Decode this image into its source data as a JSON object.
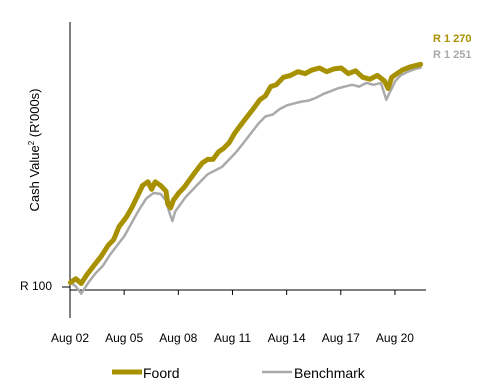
{
  "chart_data": {
    "type": "line",
    "ylabel_main": "Cash Value",
    "ylabel_sup": "2",
    "ylabel_unit": " (R'000s)",
    "y_start_label": "R 100",
    "x_ticks": [
      "Aug 02",
      "Aug 05",
      "Aug 08",
      "Aug 11",
      "Aug 14",
      "Aug 17",
      "Aug 20"
    ],
    "xlim": [
      2002.58,
      2022.3
    ],
    "ylim": [
      60,
      1400
    ],
    "legend_position": "bottom",
    "series": [
      {
        "name": "Foord",
        "color": "#a89100",
        "end_label": "R 1 270",
        "points": [
          [
            2002.6,
            100
          ],
          [
            2002.9,
            120
          ],
          [
            2003.2,
            95
          ],
          [
            2003.5,
            140
          ],
          [
            2003.9,
            190
          ],
          [
            2004.3,
            240
          ],
          [
            2004.7,
            300
          ],
          [
            2005.0,
            330
          ],
          [
            2005.3,
            400
          ],
          [
            2005.7,
            450
          ],
          [
            2006.0,
            500
          ],
          [
            2006.3,
            560
          ],
          [
            2006.6,
            620
          ],
          [
            2006.9,
            640
          ],
          [
            2007.1,
            600
          ],
          [
            2007.3,
            640
          ],
          [
            2007.6,
            620
          ],
          [
            2007.9,
            590
          ],
          [
            2008.0,
            520
          ],
          [
            2008.15,
            500
          ],
          [
            2008.3,
            540
          ],
          [
            2008.6,
            580
          ],
          [
            2008.9,
            610
          ],
          [
            2009.2,
            650
          ],
          [
            2009.5,
            690
          ],
          [
            2009.9,
            740
          ],
          [
            2010.2,
            760
          ],
          [
            2010.5,
            760
          ],
          [
            2010.8,
            800
          ],
          [
            2011.1,
            820
          ],
          [
            2011.4,
            850
          ],
          [
            2011.7,
            900
          ],
          [
            2012.0,
            940
          ],
          [
            2012.4,
            990
          ],
          [
            2012.8,
            1040
          ],
          [
            2013.1,
            1080
          ],
          [
            2013.4,
            1100
          ],
          [
            2013.7,
            1150
          ],
          [
            2014.0,
            1160
          ],
          [
            2014.4,
            1200
          ],
          [
            2014.8,
            1210
          ],
          [
            2015.2,
            1230
          ],
          [
            2015.6,
            1220
          ],
          [
            2016.0,
            1240
          ],
          [
            2016.4,
            1250
          ],
          [
            2016.8,
            1230
          ],
          [
            2017.2,
            1245
          ],
          [
            2017.6,
            1250
          ],
          [
            2018.0,
            1220
          ],
          [
            2018.4,
            1235
          ],
          [
            2018.8,
            1200
          ],
          [
            2019.2,
            1190
          ],
          [
            2019.6,
            1210
          ],
          [
            2020.0,
            1180
          ],
          [
            2020.2,
            1140
          ],
          [
            2020.4,
            1200
          ],
          [
            2020.7,
            1220
          ],
          [
            2021.0,
            1240
          ],
          [
            2021.4,
            1255
          ],
          [
            2021.8,
            1265
          ],
          [
            2022.0,
            1270
          ]
        ]
      },
      {
        "name": "Benchmark",
        "color": "#aaaaaa",
        "end_label": "R 1 251",
        "points": [
          [
            2002.6,
            100
          ],
          [
            2002.9,
            80
          ],
          [
            2003.2,
            40
          ],
          [
            2003.6,
            100
          ],
          [
            2004.0,
            150
          ],
          [
            2004.4,
            190
          ],
          [
            2004.8,
            250
          ],
          [
            2005.2,
            300
          ],
          [
            2005.6,
            350
          ],
          [
            2006.0,
            420
          ],
          [
            2006.4,
            490
          ],
          [
            2006.8,
            550
          ],
          [
            2007.2,
            580
          ],
          [
            2007.6,
            575
          ],
          [
            2007.9,
            540
          ],
          [
            2008.1,
            470
          ],
          [
            2008.25,
            430
          ],
          [
            2008.4,
            480
          ],
          [
            2008.7,
            520
          ],
          [
            2009.0,
            560
          ],
          [
            2009.4,
            600
          ],
          [
            2009.8,
            640
          ],
          [
            2010.2,
            680
          ],
          [
            2010.6,
            700
          ],
          [
            2011.0,
            720
          ],
          [
            2011.4,
            760
          ],
          [
            2011.8,
            800
          ],
          [
            2012.2,
            850
          ],
          [
            2012.6,
            900
          ],
          [
            2013.0,
            950
          ],
          [
            2013.4,
            990
          ],
          [
            2013.8,
            1000
          ],
          [
            2014.2,
            1030
          ],
          [
            2014.6,
            1050
          ],
          [
            2015.0,
            1060
          ],
          [
            2015.4,
            1070
          ],
          [
            2015.8,
            1075
          ],
          [
            2016.2,
            1090
          ],
          [
            2016.6,
            1110
          ],
          [
            2017.0,
            1125
          ],
          [
            2017.4,
            1140
          ],
          [
            2017.8,
            1150
          ],
          [
            2018.2,
            1160
          ],
          [
            2018.6,
            1150
          ],
          [
            2019.0,
            1170
          ],
          [
            2019.4,
            1160
          ],
          [
            2019.8,
            1170
          ],
          [
            2020.1,
            1080
          ],
          [
            2020.3,
            1120
          ],
          [
            2020.6,
            1180
          ],
          [
            2020.9,
            1210
          ],
          [
            2021.3,
            1230
          ],
          [
            2021.7,
            1245
          ],
          [
            2022.0,
            1251
          ]
        ]
      }
    ]
  }
}
